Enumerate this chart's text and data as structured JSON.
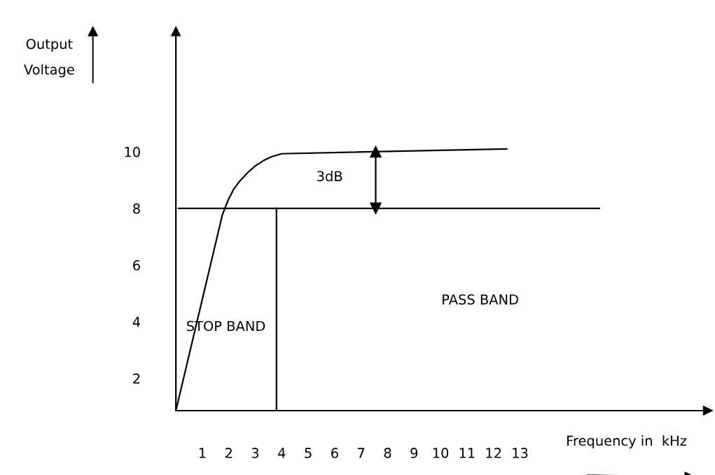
{
  "chart_data": {
    "type": "line",
    "xlabel": "Frequency in  kHz",
    "ylabel": "Output\nVoltage",
    "xlim": [
      0,
      20.1
    ],
    "ylim": [
      0.86,
      14.25
    ],
    "xticks": [
      1,
      2,
      3,
      4,
      5,
      6,
      7,
      8,
      9,
      10,
      11,
      12,
      13
    ],
    "yticks": [
      2,
      4,
      6,
      8,
      10
    ],
    "grid": false,
    "legend": false,
    "marker": "none",
    "line_style": "solid",
    "series": [
      {
        "color": "#000000",
        "x": [
          0,
          1.75,
          1.85,
          2.0,
          2.2,
          2.4,
          2.7,
          3.0,
          3.3,
          3.6,
          4.0,
          12.5
        ],
        "values": [
          0.86,
          7.75,
          8.0,
          8.35,
          8.7,
          8.95,
          9.25,
          9.5,
          9.68,
          9.82,
          9.93,
          10.1
        ]
      },
      {
        "color": "#000000",
        "x": [
          0.1,
          16
        ],
        "values": [
          8,
          8
        ]
      },
      {
        "color": "#000000",
        "x": [
          3.8,
          3.8
        ],
        "values": [
          0.86,
          8
        ]
      },
      {
        "color": "#000000",
        "x": [
          7.55,
          7.55
        ],
        "values": [
          8,
          10
        ],
        "marker": "triangle"
      }
    ],
    "annotations": [
      "3dB",
      "STOP BAND",
      "PASS BAND"
    ]
  }
}
